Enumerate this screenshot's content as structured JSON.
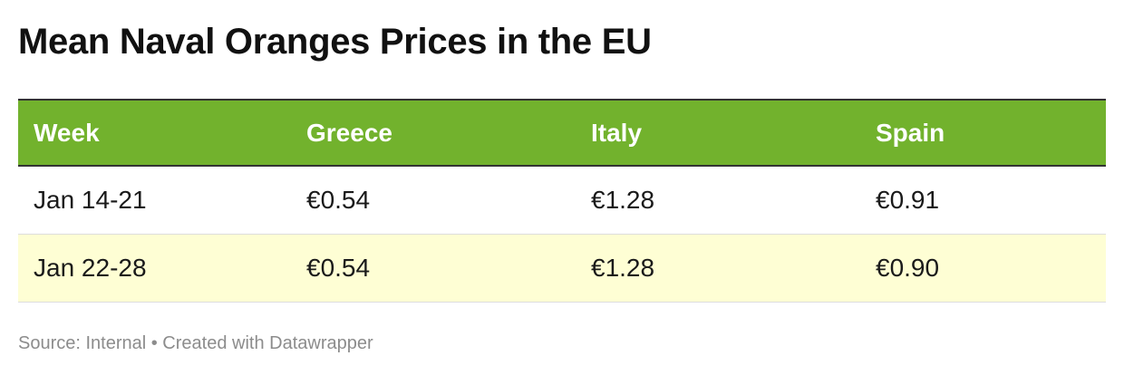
{
  "title": "Mean Naval Oranges Prices in the EU",
  "footer": "Source: Internal • Created with Datawrapper",
  "colors": {
    "header_bg": "#72b22d",
    "header_text": "#ffffff",
    "row_1_bg": "#ffffff",
    "row_2_bg": "#fefed4"
  },
  "chart_data": {
    "type": "table",
    "title": "Mean Naval Oranges Prices in the EU",
    "columns": [
      "Week",
      "Greece",
      "Italy",
      "Spain"
    ],
    "rows": [
      [
        "Jan 14-21",
        "€0.54",
        "€1.28",
        "€0.91"
      ],
      [
        "Jan 22-28",
        "€0.54",
        "€1.28",
        "€0.90"
      ]
    ],
    "source": "Source: Internal • Created with Datawrapper"
  }
}
